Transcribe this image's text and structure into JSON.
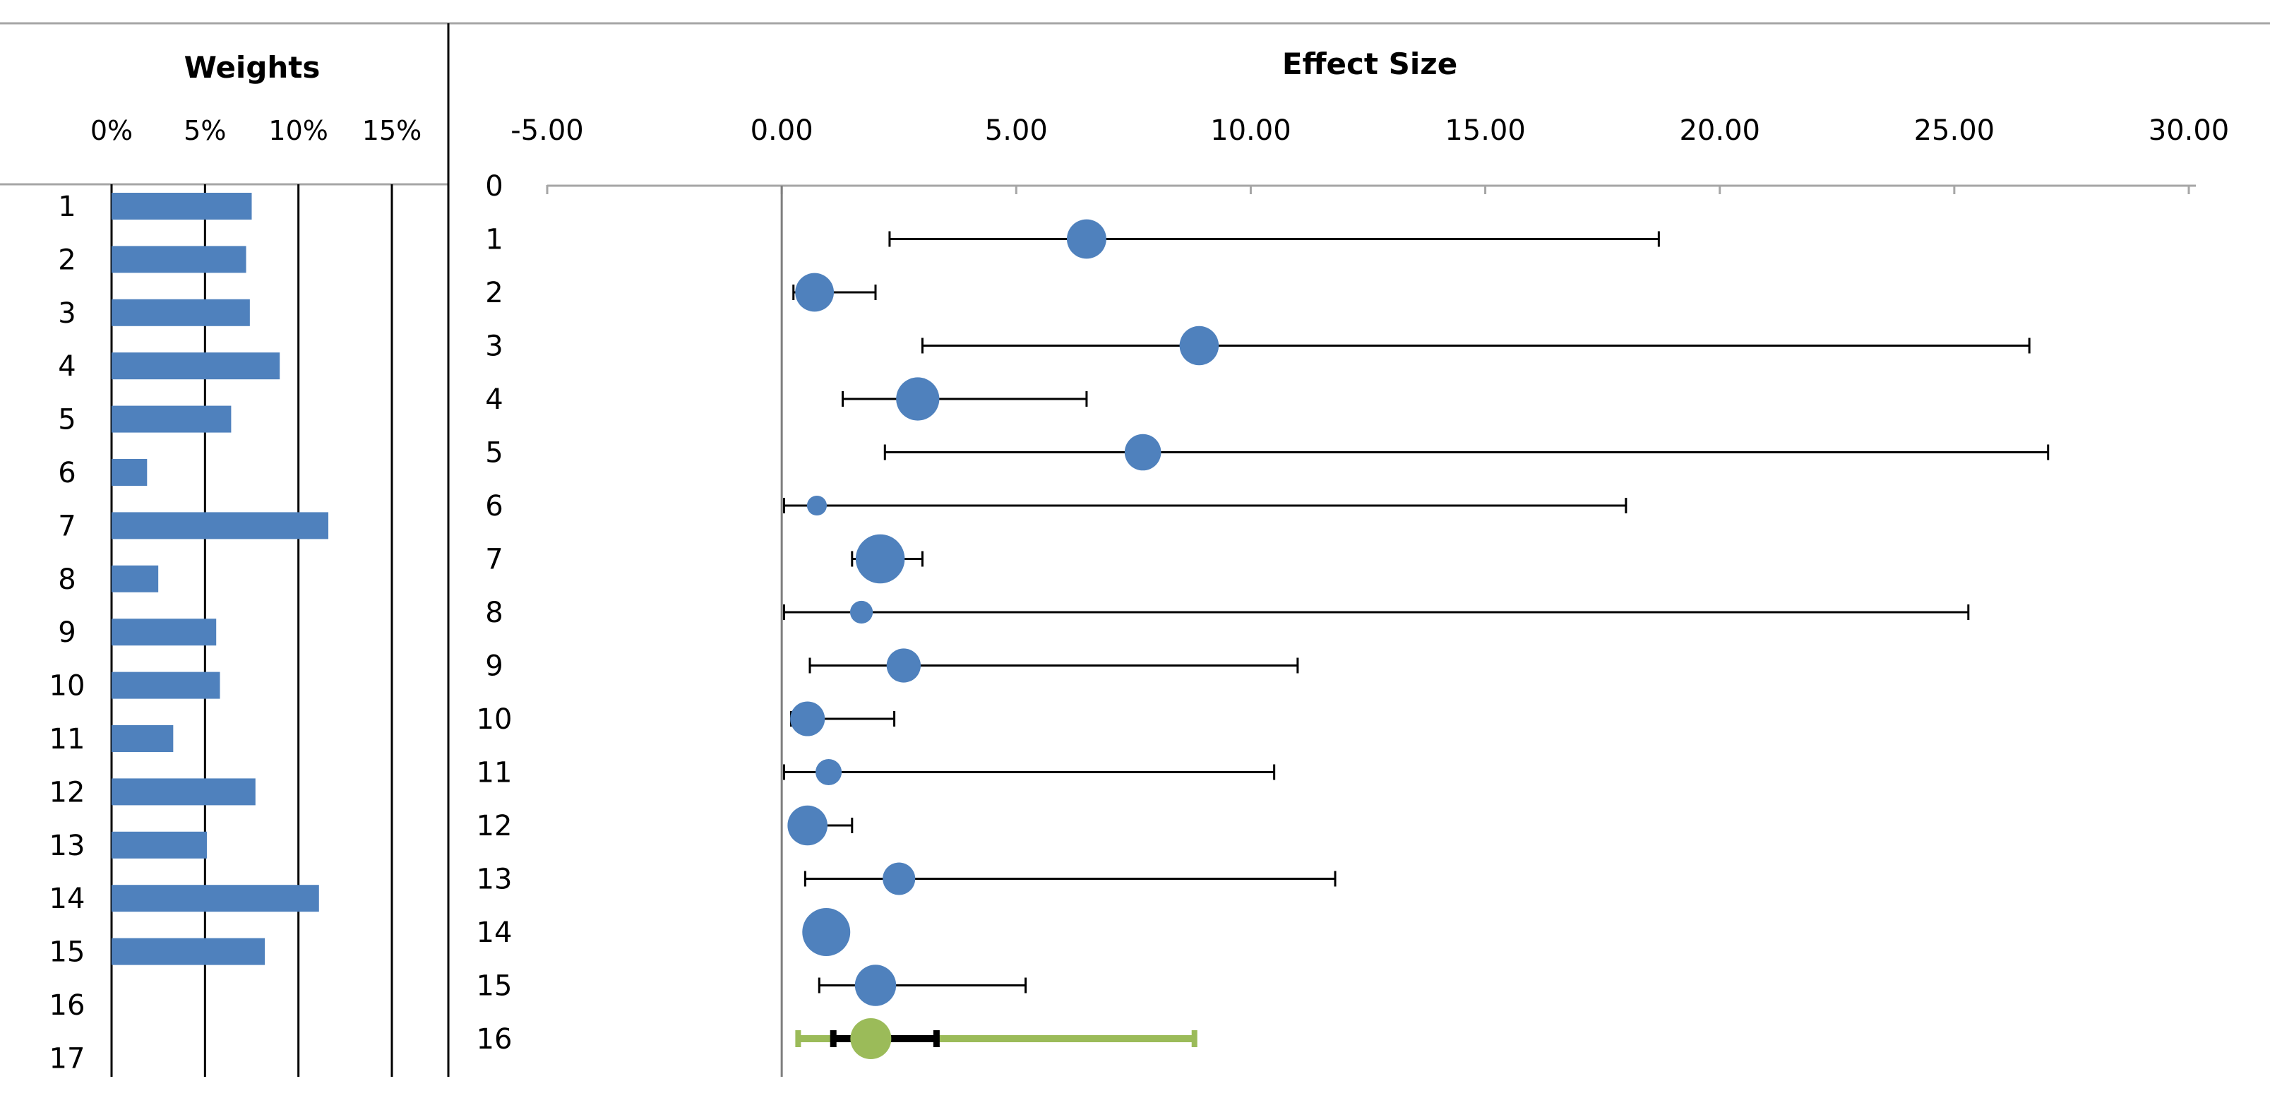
{
  "chart_data": [
    {
      "type": "bar",
      "orientation": "horizontal",
      "title": "Weights",
      "x_tick_labels": [
        "0%",
        "5%",
        "10%",
        "15%"
      ],
      "x_ticks": [
        0,
        5,
        10,
        15
      ],
      "xlim": [
        0,
        15
      ],
      "grid": true,
      "color": "#4f81bd",
      "categories": [
        "1",
        "2",
        "3",
        "4",
        "5",
        "6",
        "7",
        "8",
        "9",
        "10",
        "11",
        "12",
        "13",
        "14",
        "15",
        "16",
        "17"
      ],
      "values": [
        7.5,
        7.2,
        7.4,
        9.0,
        6.4,
        1.9,
        11.6,
        2.5,
        5.6,
        5.8,
        3.3,
        7.7,
        5.1,
        11.1,
        8.2,
        null,
        null
      ]
    },
    {
      "type": "forest",
      "title": "Effect Size",
      "xlim": [
        -5,
        30
      ],
      "x_ticks": [
        -5,
        0,
        5,
        10,
        15,
        20,
        25,
        30
      ],
      "x_tick_labels": [
        "-5.00",
        "0.00",
        "5.00",
        "10.00",
        "15.00",
        "20.00",
        "25.00",
        "30.00"
      ],
      "y_labels": [
        "0",
        "1",
        "2",
        "3",
        "4",
        "5",
        "6",
        "7",
        "8",
        "9",
        "10",
        "11",
        "12",
        "13",
        "14",
        "15",
        "16"
      ],
      "studies": [
        {
          "id": "1",
          "effect": 6.5,
          "lower": 2.3,
          "upper": 18.7,
          "weight": 7.5
        },
        {
          "id": "2",
          "effect": 0.7,
          "lower": 0.25,
          "upper": 2.0,
          "weight": 7.2
        },
        {
          "id": "3",
          "effect": 8.9,
          "lower": 3.0,
          "upper": 26.6,
          "weight": 7.4
        },
        {
          "id": "4",
          "effect": 2.9,
          "lower": 1.3,
          "upper": 6.5,
          "weight": 9.0
        },
        {
          "id": "5",
          "effect": 7.7,
          "lower": 2.2,
          "upper": 27.0,
          "weight": 6.4
        },
        {
          "id": "6",
          "effect": 0.75,
          "lower": 0.05,
          "upper": 18.0,
          "weight": 1.9
        },
        {
          "id": "7",
          "effect": 2.1,
          "lower": 1.5,
          "upper": 3.0,
          "weight": 11.6
        },
        {
          "id": "8",
          "effect": 1.7,
          "lower": 0.05,
          "upper": 25.3,
          "weight": 2.5
        },
        {
          "id": "9",
          "effect": 2.6,
          "lower": 0.6,
          "upper": 11.0,
          "weight": 5.6
        },
        {
          "id": "10",
          "effect": 0.55,
          "lower": 0.2,
          "upper": 2.4,
          "weight": 5.8
        },
        {
          "id": "11",
          "effect": 1.0,
          "lower": 0.05,
          "upper": 10.5,
          "weight": 3.3
        },
        {
          "id": "12",
          "effect": 0.55,
          "lower": 0.3,
          "upper": 1.5,
          "weight": 7.7
        },
        {
          "id": "13",
          "effect": 2.5,
          "lower": 0.5,
          "upper": 11.8,
          "weight": 5.1
        },
        {
          "id": "14",
          "effect": 0.95,
          "lower": 0.7,
          "upper": 1.35,
          "weight": 11.1
        },
        {
          "id": "15",
          "effect": 2.0,
          "lower": 0.8,
          "upper": 5.2,
          "weight": 8.2
        }
      ],
      "summary": {
        "id": "16",
        "effect": 1.9,
        "ci_lower": 1.1,
        "ci_upper": 3.3,
        "pi_lower": 0.35,
        "pi_upper": 8.8,
        "color": "#9bbb59"
      },
      "marker_color": "#4f81bd"
    }
  ]
}
